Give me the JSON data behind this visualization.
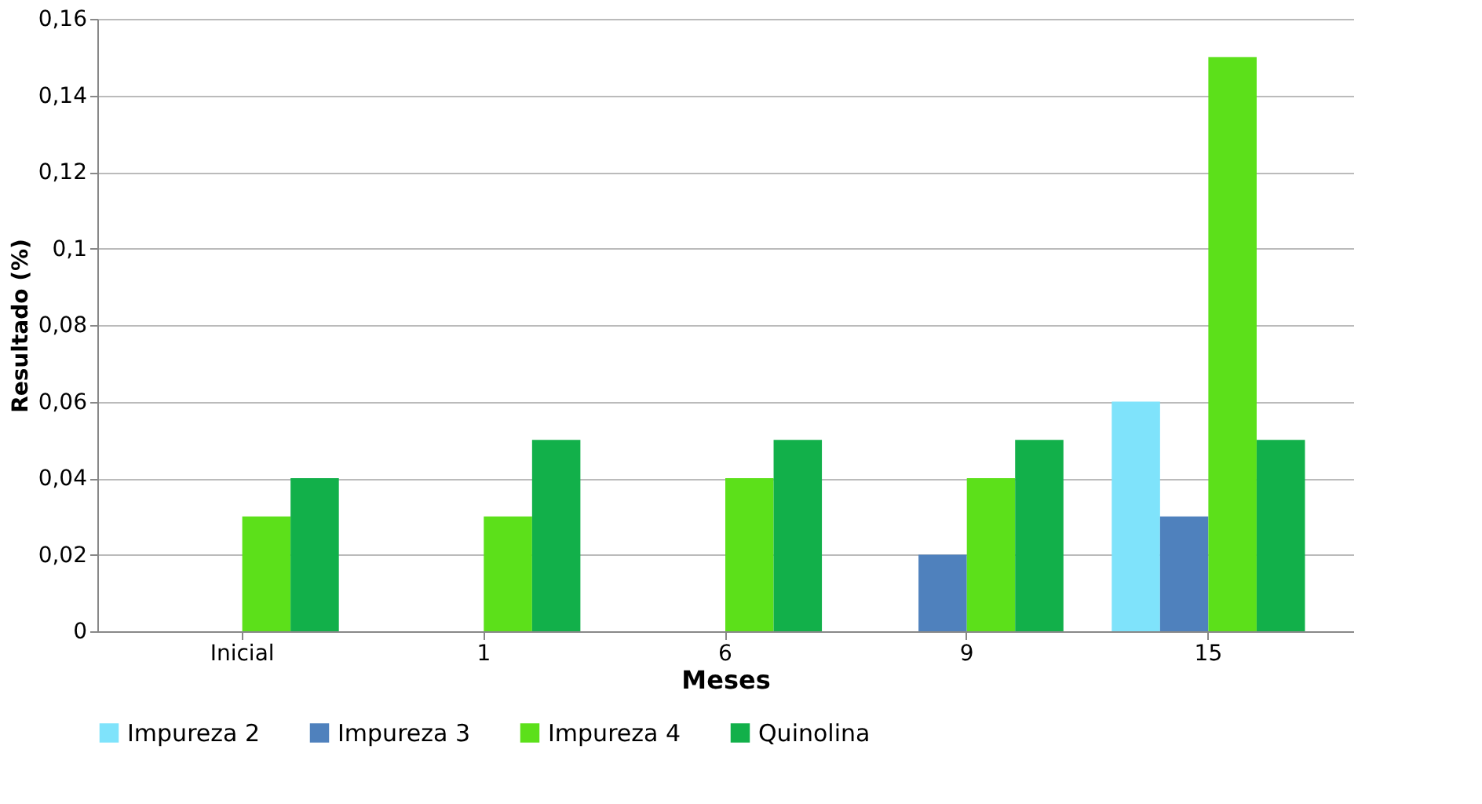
{
  "chart_data": {
    "type": "bar",
    "xlabel": "Meses",
    "ylabel": "Resultado (%)",
    "categories": [
      "Inicial",
      "1",
      "6",
      "9",
      "15"
    ],
    "series": [
      {
        "name": "Impureza 2",
        "color": "#7fe3fb",
        "values": [
          null,
          null,
          null,
          null,
          0.06
        ]
      },
      {
        "name": "Impureza 3",
        "color": "#4f81bd",
        "values": [
          null,
          null,
          null,
          0.02,
          0.03
        ]
      },
      {
        "name": "Impureza 4",
        "color": "#5ce01a",
        "values": [
          0.03,
          0.03,
          0.04,
          0.04,
          0.15
        ]
      },
      {
        "name": "Quinolina",
        "color": "#12b04a",
        "values": [
          0.04,
          0.05,
          0.05,
          0.05,
          0.05
        ]
      }
    ],
    "ylim": [
      0,
      0.16
    ],
    "yticks": [
      {
        "value": 0,
        "label": "0"
      },
      {
        "value": 0.02,
        "label": "0,02"
      },
      {
        "value": 0.04,
        "label": "0,04"
      },
      {
        "value": 0.06,
        "label": "0,06"
      },
      {
        "value": 0.08,
        "label": "0,08"
      },
      {
        "value": 0.1,
        "label": "0,1"
      },
      {
        "value": 0.12,
        "label": "0,12"
      },
      {
        "value": 0.14,
        "label": "0,14"
      },
      {
        "value": 0.16,
        "label": "0,16"
      }
    ],
    "grid": "y",
    "legend": "bottom"
  }
}
